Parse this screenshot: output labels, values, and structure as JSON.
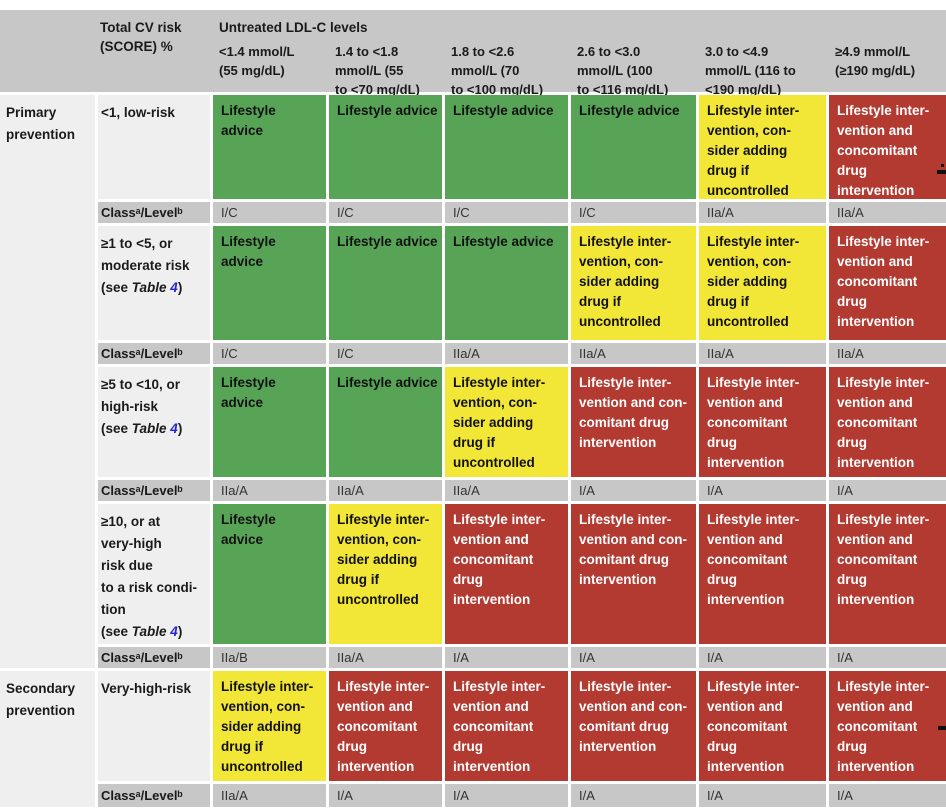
{
  "colors": {
    "green": "#58a457",
    "yellow": "#f2e636",
    "red": "#b23a31",
    "header_gray": "#c7c7c7",
    "label_gray": "#efefef",
    "link_blue": "#2424d6"
  },
  "table": {
    "header": {
      "risk_col_title": "Total CV risk\n(SCORE) %",
      "ldl_group_title": "Untreated LDL-C levels",
      "ldl_columns": [
        "<1.4 mmol/L\n(55 mg/dL)",
        "1.4 to <1.8\nmmol/L (55\nto <70 mg/dL)",
        "1.8 to <2.6\nmmol/L (70\nto <100 mg/dL)",
        "2.6 to <3.0\nmmol/L (100\nto <116 mg/dL)",
        "3.0 to <4.9\nmmol/L (116 to\n<190 mg/dL)",
        "≥4.9 mmol/L\n(≥190 mg/dL)"
      ]
    },
    "class_label": "Classᵃ/Levelᵇ",
    "groups": [
      {
        "label": "Primary\nprevention"
      },
      {
        "label": "Secondary\nprevention"
      }
    ],
    "rows": [
      {
        "risk_text": "<1, low-risk",
        "see": null,
        "cells": [
          {
            "color": "green",
            "text": "Lifestyle\nadvice"
          },
          {
            "color": "green",
            "text": "Lifestyle advice"
          },
          {
            "color": "green",
            "text": "Lifestyle advice"
          },
          {
            "color": "green",
            "text": "Lifestyle advice"
          },
          {
            "color": "yellow",
            "text": "Lifestyle inter-\nvention, con-\nsider adding\ndrug if\nuncontrolled"
          },
          {
            "color": "red",
            "text": "Lifestyle inter-\nvention and\nconcomitant\ndrug\nintervention"
          }
        ],
        "class_levels": [
          "I/C",
          "I/C",
          "I/C",
          "I/C",
          "IIa/A",
          "IIa/A"
        ]
      },
      {
        "risk_text": "≥1 to <5, or\nmoderate risk",
        "see": {
          "open": "\n(see ",
          "name": "Table ",
          "num": "4",
          "close": ")"
        },
        "cells": [
          {
            "color": "green",
            "text": "Lifestyle\nadvice"
          },
          {
            "color": "green",
            "text": "Lifestyle advice"
          },
          {
            "color": "green",
            "text": "Lifestyle advice"
          },
          {
            "color": "yellow",
            "text": "Lifestyle inter-\nvention, con-\nsider adding\ndrug if\nuncontrolled"
          },
          {
            "color": "yellow",
            "text": "Lifestyle inter-\nvention, con-\nsider adding\ndrug if\nuncontrolled"
          },
          {
            "color": "red",
            "text": "Lifestyle inter-\nvention and\nconcomitant\ndrug\nintervention"
          }
        ],
        "class_levels": [
          "I/C",
          "I/C",
          "IIa/A",
          "IIa/A",
          "IIa/A",
          "IIa/A"
        ]
      },
      {
        "risk_text": "≥5 to <10, or\nhigh-risk",
        "see": {
          "open": "\n(see ",
          "name": "Table ",
          "num": "4",
          "close": ")"
        },
        "cells": [
          {
            "color": "green",
            "text": "Lifestyle\nadvice"
          },
          {
            "color": "green",
            "text": "Lifestyle advice"
          },
          {
            "color": "yellow",
            "text": "Lifestyle inter-\nvention, con-\nsider adding\ndrug if\nuncontrolled"
          },
          {
            "color": "red",
            "text": "Lifestyle inter-\nvention and con-\ncomitant drug\nintervention"
          },
          {
            "color": "red",
            "text": "Lifestyle inter-\nvention and\nconcomitant\ndrug\nintervention"
          },
          {
            "color": "red",
            "text": "Lifestyle inter-\nvention and\nconcomitant\ndrug\nintervention"
          }
        ],
        "class_levels": [
          "IIa/A",
          "IIa/A",
          "IIa/A",
          "I/A",
          "I/A",
          "I/A"
        ]
      },
      {
        "risk_text": "≥10, or at\nvery-high\nrisk due\nto a risk condi-\ntion",
        "see": {
          "open": "\n(see ",
          "name": "Table ",
          "num": "4",
          "close": ")"
        },
        "cells": [
          {
            "color": "green",
            "text": "Lifestyle\nadvice"
          },
          {
            "color": "yellow",
            "text": "Lifestyle inter-\nvention, con-\nsider adding\ndrug if\nuncontrolled"
          },
          {
            "color": "red",
            "text": "Lifestyle inter-\nvention and\nconcomitant\ndrug\nintervention"
          },
          {
            "color": "red",
            "text": "Lifestyle inter-\nvention and con-\ncomitant drug\nintervention"
          },
          {
            "color": "red",
            "text": "Lifestyle inter-\nvention and\nconcomitant\ndrug\nintervention"
          },
          {
            "color": "red",
            "text": "Lifestyle inter-\nvention and\nconcomitant\ndrug\nintervention"
          }
        ],
        "class_levels": [
          "IIa/B",
          "IIa/A",
          "I/A",
          "I/A",
          "I/A",
          "I/A"
        ]
      },
      {
        "risk_text": "Very-high-risk",
        "see": null,
        "cells": [
          {
            "color": "yellow",
            "text": "Lifestyle inter-\nvention, con-\nsider adding\ndrug if\nuncontrolled"
          },
          {
            "color": "red",
            "text": "Lifestyle inter-\nvention and\nconcomitant\ndrug\nintervention"
          },
          {
            "color": "red",
            "text": "Lifestyle inter-\nvention and\nconcomitant\ndrug\nintervention"
          },
          {
            "color": "red",
            "text": "Lifestyle inter-\nvention and con-\ncomitant drug\nintervention"
          },
          {
            "color": "red",
            "text": "Lifestyle inter-\nvention and\nconcomitant\ndrug\nintervention"
          },
          {
            "color": "red",
            "text": "Lifestyle inter-\nvention and\nconcomitant\ndrug\nintervention"
          }
        ],
        "class_levels": [
          "IIa/A",
          "I/A",
          "I/A",
          "I/A",
          "I/A",
          "I/A"
        ]
      }
    ]
  }
}
